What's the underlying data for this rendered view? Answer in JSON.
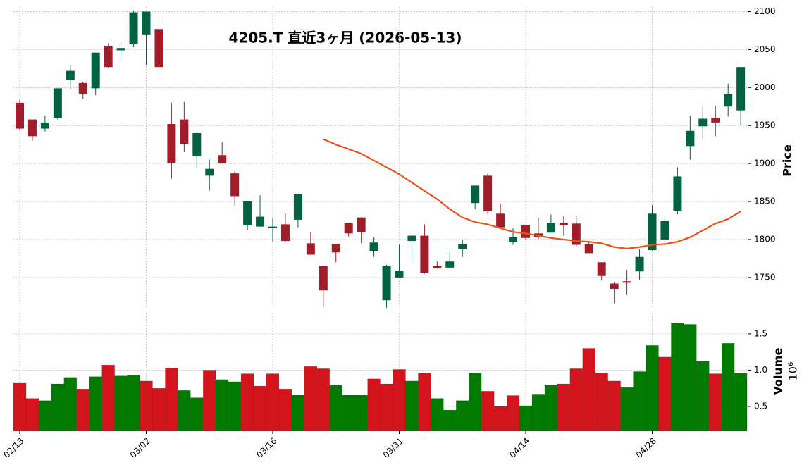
{
  "chart_data": {
    "type": "candlestick",
    "title": "4205.T  直近3ヶ月  (2026-05-13)",
    "categories": [
      "02/13",
      null,
      null,
      null,
      null,
      null,
      null,
      null,
      null,
      null,
      "03/02",
      null,
      null,
      null,
      null,
      null,
      null,
      null,
      null,
      null,
      "03/16",
      null,
      null,
      null,
      null,
      null,
      null,
      null,
      null,
      null,
      "03/31",
      null,
      null,
      null,
      null,
      null,
      null,
      null,
      null,
      null,
      "04/14",
      null,
      null,
      null,
      null,
      null,
      null,
      null,
      null,
      null,
      "04/28",
      null,
      null,
      null,
      null,
      null,
      null,
      null
    ],
    "open": [
      1980,
      1958,
      1946,
      1960,
      2010,
      2006,
      1999,
      2055,
      2049,
      2057,
      2070,
      2077,
      1952,
      1958,
      1910,
      1884,
      1911,
      1887,
      1819,
      1817,
      1815,
      1820,
      1826,
      1795,
      1765,
      1794,
      1822,
      1829,
      1785,
      1720,
      1750,
      1798,
      1805,
      1765,
      1763,
      1787,
      1848,
      1884,
      1834,
      1797,
      1819,
      1808,
      1809,
      1822,
      1821,
      1794,
      1770,
      1742,
      1745,
      1758,
      1786,
      1800,
      1838,
      1923,
      1949,
      1960,
      1975,
      1970
    ],
    "high": [
      1984,
      1958,
      1963,
      1999,
      2030,
      2008,
      2046,
      2058,
      2060,
      2101,
      2100,
      2092,
      1980,
      1981,
      1942,
      1905,
      1928,
      1890,
      1850,
      1858,
      1828,
      1834,
      1860,
      1810,
      1765,
      1794,
      1822,
      1829,
      1803,
      1767,
      1793,
      1805,
      1820,
      1771,
      1783,
      1800,
      1871,
      1887,
      1847,
      1815,
      1819,
      1829,
      1833,
      1831,
      1831,
      1798,
      1770,
      1744,
      1760,
      1787,
      1845,
      1830,
      1895,
      1963,
      1976,
      1976,
      2005,
      2027
    ],
    "low": [
      1944,
      1930,
      1942,
      1958,
      1998,
      1985,
      1990,
      2026,
      2034,
      2053,
      2030,
      2016,
      1880,
      1915,
      1894,
      1864,
      1900,
      1845,
      1812,
      1817,
      1796,
      1796,
      1816,
      1780,
      1711,
      1770,
      1804,
      1795,
      1777,
      1710,
      1750,
      1770,
      1755,
      1762,
      1763,
      1777,
      1840,
      1833,
      1814,
      1793,
      1800,
      1801,
      1809,
      1805,
      1791,
      1782,
      1746,
      1716,
      1727,
      1747,
      1785,
      1791,
      1833,
      1905,
      1933,
      1936,
      1962,
      1950
    ],
    "close": [
      1946,
      1936,
      1954,
      1999,
      2022,
      1992,
      2046,
      2027,
      2052,
      2099,
      2100,
      2027,
      1901,
      1926,
      1940,
      1893,
      1900,
      1857,
      1850,
      1830,
      1817,
      1798,
      1860,
      1780,
      1733,
      1783,
      1808,
      1810,
      1796,
      1765,
      1759,
      1805,
      1756,
      1762,
      1771,
      1794,
      1871,
      1837,
      1816,
      1803,
      1802,
      1803,
      1822,
      1819,
      1793,
      1782,
      1752,
      1735,
      1743,
      1777,
      1834,
      1825,
      1883,
      1943,
      1959,
      1954,
      1991,
      2027
    ],
    "up_color": "#006340",
    "down_color": "#a01e2a",
    "moving_average": {
      "color": "#e8541c",
      "values": [
        null,
        null,
        null,
        null,
        null,
        null,
        null,
        null,
        null,
        null,
        null,
        null,
        null,
        null,
        null,
        null,
        null,
        null,
        null,
        null,
        null,
        null,
        null,
        null,
        1932,
        1925,
        1919,
        1913,
        1904,
        1895,
        1886,
        1875,
        1864,
        1853,
        1840,
        1829,
        1823,
        1820,
        1815,
        1810,
        1808,
        1805,
        1802,
        1800,
        1798,
        1797,
        1795,
        1790,
        1788,
        1790,
        1793,
        1794,
        1797,
        1803,
        1812,
        1821,
        1827,
        1837
      ]
    },
    "ylabel": "Price",
    "ylim": [
      1710,
      2106
    ],
    "yticks": [
      1750,
      1800,
      1850,
      1900,
      1950,
      2000,
      2050,
      2100
    ],
    "grid": true,
    "volume": {
      "label": "Volume",
      "exponent_label": "10⁶",
      "ylim": [
        0.16,
        1.78
      ],
      "yticks": [
        0.5,
        {
          "value": 1,
          "label": "1.0"
        },
        1.5
      ],
      "values": [
        0.83,
        0.61,
        0.58,
        0.81,
        0.9,
        0.74,
        0.91,
        1.07,
        0.92,
        0.93,
        0.85,
        0.75,
        1.03,
        0.72,
        0.62,
        1.0,
        0.87,
        0.84,
        0.95,
        0.78,
        0.95,
        0.74,
        0.66,
        1.05,
        1.02,
        0.79,
        0.66,
        0.66,
        0.88,
        0.81,
        1.01,
        0.85,
        0.96,
        0.61,
        0.45,
        0.58,
        0.96,
        0.71,
        0.5,
        0.65,
        0.51,
        0.67,
        0.79,
        0.81,
        1.02,
        1.3,
        0.96,
        0.85,
        0.76,
        0.98,
        1.34,
        1.18,
        1.65,
        1.63,
        1.12,
        0.95,
        1.37,
        0.96
      ],
      "colors": [
        "#d4141c",
        "#d4141c",
        "#007a00",
        "#007a00",
        "#007a00",
        "#d4141c",
        "#007a00",
        "#d4141c",
        "#007a00",
        "#007a00",
        "#d4141c",
        "#d4141c",
        "#d4141c",
        "#007a00",
        "#007a00",
        "#d4141c",
        "#007a00",
        "#007a00",
        "#d4141c",
        "#d4141c",
        "#d4141c",
        "#d4141c",
        "#007a00",
        "#d4141c",
        "#d4141c",
        "#007a00",
        "#007a00",
        "#007a00",
        "#d4141c",
        "#d4141c",
        "#d4141c",
        "#007a00",
        "#d4141c",
        "#007a00",
        "#007a00",
        "#007a00",
        "#007a00",
        "#d4141c",
        "#d4141c",
        "#d4141c",
        "#007a00",
        "#007a00",
        "#007a00",
        "#d4141c",
        "#d4141c",
        "#d4141c",
        "#d4141c",
        "#d4141c",
        "#007a00",
        "#007a00",
        "#007a00",
        "#d4141c",
        "#007a00",
        "#007a00",
        "#007a00",
        "#d4141c",
        "#007a00",
        "#007a00"
      ]
    }
  }
}
